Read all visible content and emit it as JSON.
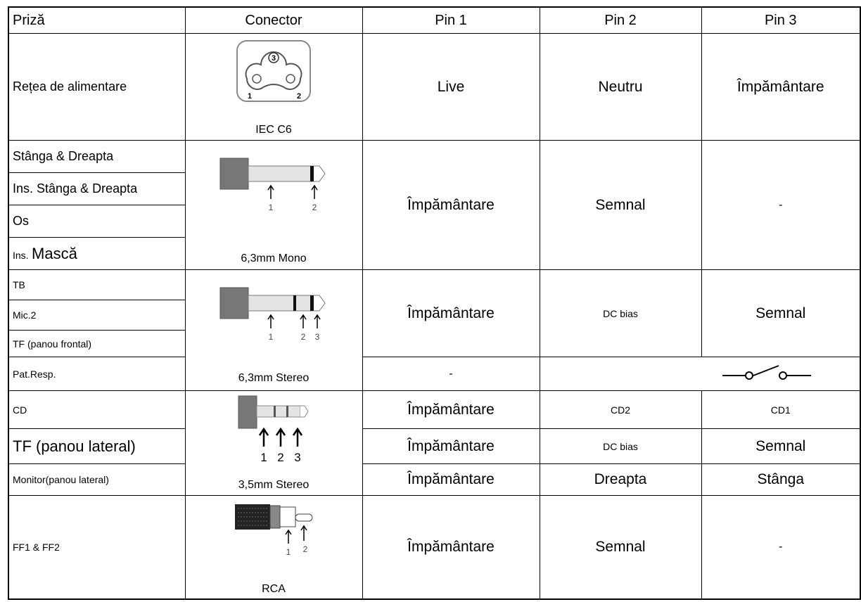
{
  "header": [
    "Priză",
    "Conector",
    "Pin 1",
    "Pin 2",
    "Pin 3"
  ],
  "sockets": [
    "Rețea de alimentare",
    "Stânga & Dreapta",
    "Ins. Stânga & Dreapta",
    "Os",
    {
      "prefix": "Ins.",
      "main": "Mască"
    },
    "TB",
    "Mic.2",
    "TF (panou frontal)",
    "Pat.Resp.",
    "CD",
    "TF (panou lateral)",
    "Monitor(panou lateral)",
    "FF1 & FF2"
  ],
  "connectors": [
    {
      "caption": "IEC C6",
      "pin_labels": [
        "3",
        "1",
        "2"
      ]
    },
    {
      "caption": "6,3mm Mono",
      "pin_labels": [
        "1",
        "2"
      ]
    },
    {
      "caption": "6,3mm Stereo",
      "pin_labels": [
        "1",
        "2",
        "3"
      ]
    },
    {
      "caption": "3,5mm Stereo",
      "pin_labels": [
        "1",
        "2",
        "3"
      ]
    },
    {
      "caption": "RCA",
      "pin_labels": [
        "1",
        "2"
      ]
    }
  ],
  "pins": [
    [
      "Live",
      "Neutru",
      "Împământare"
    ],
    [
      "Împământare",
      "Semnal",
      "-"
    ],
    [
      "Împământare",
      "DC bias",
      "Semnal"
    ],
    [
      "-"
    ],
    [
      "Împământare",
      "CD2",
      "CD1"
    ],
    [
      "Împământare",
      "DC bias",
      "Semnal"
    ],
    [
      "Împământare",
      "Dreapta",
      "Stânga"
    ],
    [
      "Împământare",
      "Semnal",
      "-"
    ]
  ]
}
